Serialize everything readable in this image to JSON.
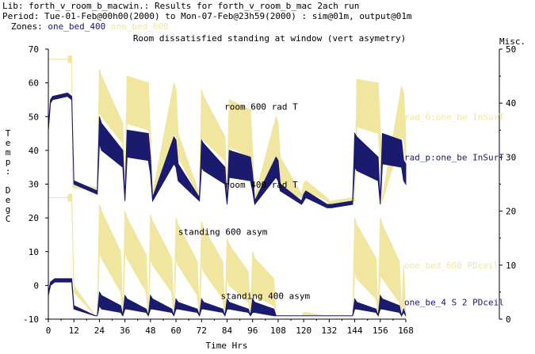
{
  "header": {
    "lib_line": "Lib: forth_v_room_b_macwin.: Results for forth_v_room_b_mac 2ach run",
    "period_line": "Period: Tue-01-Feb@00h00(2000) to Mon-07-Feb@23h59(2000) : sim@01m, output@01m",
    "zones_label": "Zones:",
    "zone1": "one_bed_400",
    "zone2": "one_bed_600"
  },
  "colors": {
    "zone_400": "#1a1a6e",
    "zone_600": "#f0e6a0",
    "axis": "#000000"
  },
  "chart_data": {
    "type": "line",
    "title": "Room dissatisfied standing at window (vert asymetry)",
    "xlabel": "Time Hrs",
    "ylabel_left": [
      "T",
      "e",
      "m",
      "p",
      ":",
      "",
      "D",
      "e",
      "g",
      "C"
    ],
    "ylabel_right": "Misc.",
    "xlim": [
      0,
      168
    ],
    "ylim_left": [
      -10,
      70
    ],
    "ylim_right": [
      0,
      50
    ],
    "x_ticks": [
      0,
      12,
      24,
      36,
      48,
      60,
      72,
      84,
      96,
      108,
      120,
      132,
      144,
      156,
      168
    ],
    "y_ticks_left": [
      -10,
      0,
      10,
      20,
      30,
      40,
      50,
      60,
      70
    ],
    "y_ticks_right": [
      0,
      10,
      20,
      30,
      40,
      50
    ],
    "annotations": [
      {
        "text": "room 600 rad T",
        "x": 100,
        "y": 52
      },
      {
        "text": "room 400 rad T",
        "x": 100,
        "y": 29
      },
      {
        "text": "standing 600 asym",
        "x": 82,
        "y": 15
      },
      {
        "text": "standing 400 asym",
        "x": 102,
        "y": -4
      }
    ],
    "legend": [
      {
        "text": "rad_6:one_be InSurT",
        "color": "#f0e6a0",
        "y": 50
      },
      {
        "text": "rad_p:one_be InSurT",
        "color": "#1a1a6e",
        "y": 38
      },
      {
        "text": "one_bed_600 PDceil",
        "color": "#f0e6a0",
        "y": 6
      },
      {
        "text": "one_be_4 S 2 PDceil",
        "color": "#1a1a6e",
        "y": -5
      }
    ],
    "series": [
      {
        "name": "rad_6:one_be InSurT",
        "axis": "left",
        "band": true,
        "color": "#f0e6a0",
        "x": [
          0,
          9,
          9.5,
          11,
          11.5,
          23,
          24,
          25,
          35,
          36,
          37,
          47,
          48,
          49,
          59,
          60,
          61,
          71,
          72,
          73,
          83,
          84,
          85,
          95,
          96,
          97,
          107,
          108,
          109,
          119,
          120,
          121,
          131,
          132,
          133,
          143,
          144,
          145,
          155,
          156,
          157,
          166,
          167,
          168
        ],
        "hi": [
          67,
          67,
          68,
          68,
          30,
          29,
          64,
          62,
          48,
          27,
          62,
          60,
          46,
          27,
          60,
          58,
          45,
          27,
          58,
          56,
          44,
          27,
          55,
          52,
          40,
          26,
          50,
          48,
          38,
          27,
          30,
          31,
          26,
          25,
          25,
          26,
          26,
          61,
          60,
          48,
          26,
          59,
          57,
          45
        ],
        "lo": [
          67,
          67,
          66,
          66,
          29,
          28,
          52,
          50,
          42,
          27,
          48,
          46,
          40,
          26,
          45,
          44,
          38,
          26,
          44,
          43,
          37,
          26,
          41,
          38,
          33,
          25,
          33,
          32,
          28,
          26,
          27,
          28,
          25,
          24,
          24,
          25,
          25,
          47,
          45,
          38,
          25,
          44,
          43,
          36
        ]
      },
      {
        "name": "rad_p:one_be InSurT",
        "axis": "left",
        "band": true,
        "color": "#1a1a6e",
        "x": [
          0,
          1,
          2,
          9,
          11,
          12,
          23,
          24,
          25,
          35,
          36,
          37,
          47,
          48,
          49,
          59,
          60,
          61,
          71,
          72,
          73,
          83,
          84,
          85,
          95,
          96,
          97,
          107,
          108,
          109,
          119,
          120,
          121,
          131,
          132,
          133,
          143,
          144,
          145,
          155,
          156,
          157,
          166,
          167,
          168
        ],
        "hi": [
          47,
          55,
          56,
          57,
          56,
          31,
          28,
          50,
          48,
          40,
          26,
          46,
          45,
          38,
          26,
          44,
          43,
          36,
          26,
          43,
          42,
          35,
          25,
          40,
          38,
          33,
          25,
          38,
          37,
          30,
          25,
          27,
          28,
          24,
          24,
          24,
          25,
          45,
          44,
          38,
          25,
          45,
          43,
          37,
          36
        ],
        "lo": [
          46,
          54,
          55,
          56,
          55,
          30,
          27,
          42,
          40,
          35,
          25,
          38,
          37,
          33,
          25,
          36,
          35,
          31,
          25,
          35,
          34,
          30,
          24,
          32,
          31,
          28,
          24,
          32,
          31,
          28,
          24,
          25,
          26,
          23,
          23,
          23,
          24,
          35,
          34,
          31,
          24,
          36,
          35,
          31,
          30
        ]
      },
      {
        "name": "one_bed_600 PDceil",
        "axis": "left",
        "band": true,
        "color": "#f0e6a0",
        "x": [
          0,
          9,
          9.5,
          11,
          12,
          22,
          23,
          24,
          25,
          34,
          35,
          36,
          37,
          46,
          47,
          48,
          49,
          58,
          59,
          60,
          61,
          70,
          71,
          72,
          73,
          82,
          83,
          84,
          85,
          94,
          95,
          96,
          97,
          106,
          107,
          108,
          109,
          118,
          119,
          120,
          121,
          130,
          131,
          132,
          133,
          142,
          143,
          144,
          145,
          154,
          155,
          156,
          157,
          165,
          166,
          167,
          168
        ],
        "hi": [
          26,
          26,
          27,
          27,
          0,
          -9,
          -9,
          24,
          22,
          10,
          -9,
          22,
          20,
          9,
          -9,
          21,
          19,
          8,
          -9,
          20,
          18,
          7,
          -9,
          19,
          17,
          7,
          -9,
          14,
          12,
          4,
          -9,
          10,
          8,
          2,
          -9,
          -9,
          -9,
          -9,
          -9,
          -8,
          -8,
          -9,
          -9,
          -9,
          -9,
          -9,
          -9,
          20,
          18,
          8,
          -9,
          20,
          18,
          7,
          -9,
          6,
          -9
        ],
        "lo": [
          26,
          26,
          25,
          25,
          -2,
          -9,
          -9,
          10,
          8,
          -2,
          -9,
          10,
          8,
          -2,
          -9,
          8,
          6,
          -2,
          -9,
          8,
          6,
          -3,
          -9,
          6,
          4,
          -4,
          -9,
          2,
          0,
          -5,
          -9,
          -2,
          -3,
          -6,
          -9,
          -9,
          -9,
          -9,
          -9,
          -9,
          -9,
          -9,
          -9,
          -9,
          -9,
          -9,
          -9,
          4,
          2,
          -4,
          -9,
          3,
          2,
          -5,
          -9,
          -4,
          -9
        ]
      },
      {
        "name": "one_be_4 S 2 PDceil",
        "axis": "left",
        "band": true,
        "color": "#1a1a6e",
        "x": [
          0,
          1,
          3,
          9,
          11,
          12,
          22,
          23,
          24,
          25,
          34,
          35,
          36,
          37,
          46,
          47,
          48,
          49,
          58,
          59,
          60,
          61,
          70,
          71,
          72,
          73,
          82,
          83,
          84,
          85,
          94,
          95,
          96,
          97,
          106,
          107,
          108,
          118,
          119,
          120,
          130,
          131,
          132,
          142,
          143,
          144,
          145,
          154,
          155,
          156,
          157,
          165,
          166,
          167,
          168
        ],
        "hi": [
          -2,
          1,
          2,
          2,
          2,
          -6,
          -9,
          -9,
          -2,
          -3,
          -6,
          -9,
          -3,
          -4,
          -7,
          -9,
          -3,
          -4,
          -7,
          -9,
          -4,
          -5,
          -7,
          -9,
          -4,
          -5,
          -7,
          -9,
          -4,
          -5,
          -7,
          -9,
          -4,
          -5,
          -7,
          -9,
          -9,
          -9,
          -9,
          -9,
          -9,
          -9,
          -9,
          -9,
          -9,
          -4,
          -5,
          -7,
          -9,
          -3,
          -4,
          -6,
          -9,
          -7,
          -9
        ],
        "lo": [
          -3,
          0,
          1,
          1,
          1,
          -7,
          -9,
          -9,
          -6,
          -7,
          -8,
          -9,
          -7,
          -7,
          -8,
          -9,
          -7,
          -7,
          -8,
          -9,
          -7,
          -7,
          -8,
          -9,
          -7,
          -7,
          -8,
          -9,
          -7,
          -7,
          -8,
          -9,
          -8,
          -8,
          -9,
          -9,
          -9,
          -9,
          -9,
          -9,
          -9,
          -9,
          -9,
          -9,
          -9,
          -7,
          -7,
          -8,
          -9,
          -7,
          -7,
          -8,
          -9,
          -8,
          -9
        ]
      }
    ]
  }
}
